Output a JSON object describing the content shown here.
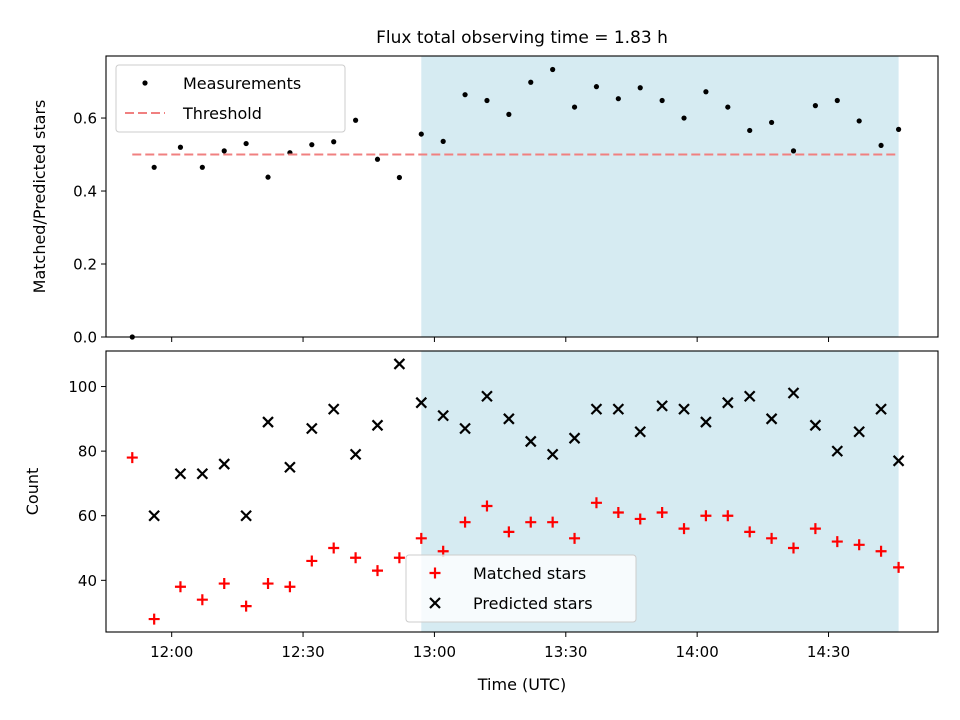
{
  "chart_data": [
    {
      "type": "scatter",
      "title": "Flux total observing time = 1.83 h",
      "xlabel": "",
      "ylabel": "Matched/Predicted stars",
      "xlim": [
        "11:45",
        "14:55"
      ],
      "ylim": [
        0,
        0.77
      ],
      "yticks": [
        0.0,
        0.2,
        0.4,
        0.6
      ],
      "ytick_labels": [
        "0.0",
        "0.2",
        "0.4",
        "0.6"
      ],
      "grid": false,
      "legend_position": "upper left",
      "shaded_interval": [
        "12:57",
        "14:46"
      ],
      "shade_color": "#add8e6",
      "series": [
        {
          "name": "Measurements",
          "color": "#000000",
          "marker": "dot",
          "x": [
            "11:51",
            "11:56",
            "12:02",
            "12:07",
            "12:12",
            "12:17",
            "12:22",
            "12:27",
            "12:32",
            "12:37",
            "12:42",
            "12:47",
            "12:52",
            "12:57",
            "13:02",
            "13:07",
            "13:12",
            "13:17",
            "13:22",
            "13:27",
            "13:32",
            "13:37",
            "13:42",
            "13:47",
            "13:52",
            "13:57",
            "14:02",
            "14:07",
            "14:12",
            "14:17",
            "14:22",
            "14:27",
            "14:32",
            "14:37",
            "14:42",
            "14:46"
          ],
          "values": [
            0.0,
            0.465,
            0.52,
            0.465,
            0.51,
            0.53,
            0.438,
            0.505,
            0.527,
            0.535,
            0.594,
            0.487,
            0.437,
            0.556,
            0.536,
            0.664,
            0.648,
            0.61,
            0.698,
            0.733,
            0.63,
            0.686,
            0.653,
            0.683,
            0.648,
            0.6,
            0.672,
            0.63,
            0.566,
            0.588,
            0.51,
            0.634,
            0.648,
            0.592,
            0.525,
            0.569
          ]
        },
        {
          "name": "Threshold",
          "color": "#f08080",
          "style": "dashed",
          "x": [
            "11:51",
            "14:46"
          ],
          "values": [
            0.5,
            0.5
          ]
        }
      ]
    },
    {
      "type": "scatter",
      "title": "",
      "xlabel": "Time (UTC)",
      "ylabel": "Count",
      "xlim": [
        "11:45",
        "14:55"
      ],
      "ylim": [
        24,
        111
      ],
      "yticks": [
        40,
        60,
        80,
        100
      ],
      "ytick_labels": [
        "40",
        "60",
        "80",
        "100"
      ],
      "xticks": [
        "12:00",
        "12:30",
        "13:00",
        "13:30",
        "14:00",
        "14:30"
      ],
      "xtick_labels": [
        "12:00",
        "12:30",
        "13:00",
        "13:30",
        "14:00",
        "14:30"
      ],
      "grid": false,
      "legend_position": "lower center",
      "shaded_interval": [
        "12:57",
        "14:46"
      ],
      "shade_color": "#add8e6",
      "series": [
        {
          "name": "Matched stars",
          "color": "#ff0000",
          "marker": "plus",
          "x": [
            "11:51",
            "11:56",
            "12:02",
            "12:07",
            "12:12",
            "12:17",
            "12:22",
            "12:27",
            "12:32",
            "12:37",
            "12:42",
            "12:47",
            "12:52",
            "12:57",
            "13:02",
            "13:07",
            "13:12",
            "13:17",
            "13:22",
            "13:27",
            "13:32",
            "13:37",
            "13:42",
            "13:47",
            "13:52",
            "13:57",
            "14:02",
            "14:07",
            "14:12",
            "14:17",
            "14:22",
            "14:27",
            "14:32",
            "14:37",
            "14:42",
            "14:46"
          ],
          "values": [
            78,
            28,
            38,
            34,
            39,
            32,
            39,
            38,
            46,
            50,
            47,
            43,
            47,
            53,
            49,
            58,
            63,
            55,
            58,
            58,
            53,
            64,
            61,
            59,
            61,
            56,
            60,
            60,
            55,
            53,
            50,
            56,
            52,
            51,
            49,
            44
          ]
        },
        {
          "name": "Predicted stars",
          "color": "#000000",
          "marker": "x",
          "x": [
            "11:56",
            "12:02",
            "12:07",
            "12:12",
            "12:17",
            "12:22",
            "12:27",
            "12:32",
            "12:37",
            "12:42",
            "12:47",
            "12:52",
            "12:57",
            "13:02",
            "13:07",
            "13:12",
            "13:17",
            "13:22",
            "13:27",
            "13:32",
            "13:37",
            "13:42",
            "13:47",
            "13:52",
            "13:57",
            "14:02",
            "14:07",
            "14:12",
            "14:17",
            "14:22",
            "14:27",
            "14:32",
            "14:37",
            "14:42",
            "14:46"
          ],
          "values": [
            60,
            73,
            73,
            76,
            60,
            89,
            75,
            87,
            93,
            79,
            88,
            107,
            95,
            91,
            87,
            97,
            90,
            83,
            79,
            84,
            93,
            93,
            86,
            94,
            93,
            89,
            95,
            97,
            90,
            98,
            88,
            80,
            86,
            93,
            77
          ]
        }
      ]
    }
  ]
}
